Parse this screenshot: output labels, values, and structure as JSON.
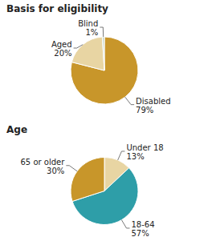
{
  "chart_data": [
    {
      "type": "pie",
      "title": "Basis for eligibility",
      "categories": [
        "Disabled",
        "Aged",
        "Blind"
      ],
      "values": [
        79,
        20,
        1
      ],
      "value_labels": [
        "79%",
        "20%",
        "1%"
      ],
      "colors": [
        "#C8962A",
        "#E8D5A3",
        "#C8D8C8"
      ],
      "data_labels": true
    },
    {
      "type": "pie",
      "title": "Age",
      "categories": [
        "Under 18",
        "18-64",
        "65 or older"
      ],
      "values": [
        13,
        57,
        30
      ],
      "value_labels": [
        "13%",
        "57%",
        "30%"
      ],
      "colors": [
        "#E8D5A3",
        "#2E9EA8",
        "#C8962A"
      ],
      "data_labels": true
    }
  ]
}
